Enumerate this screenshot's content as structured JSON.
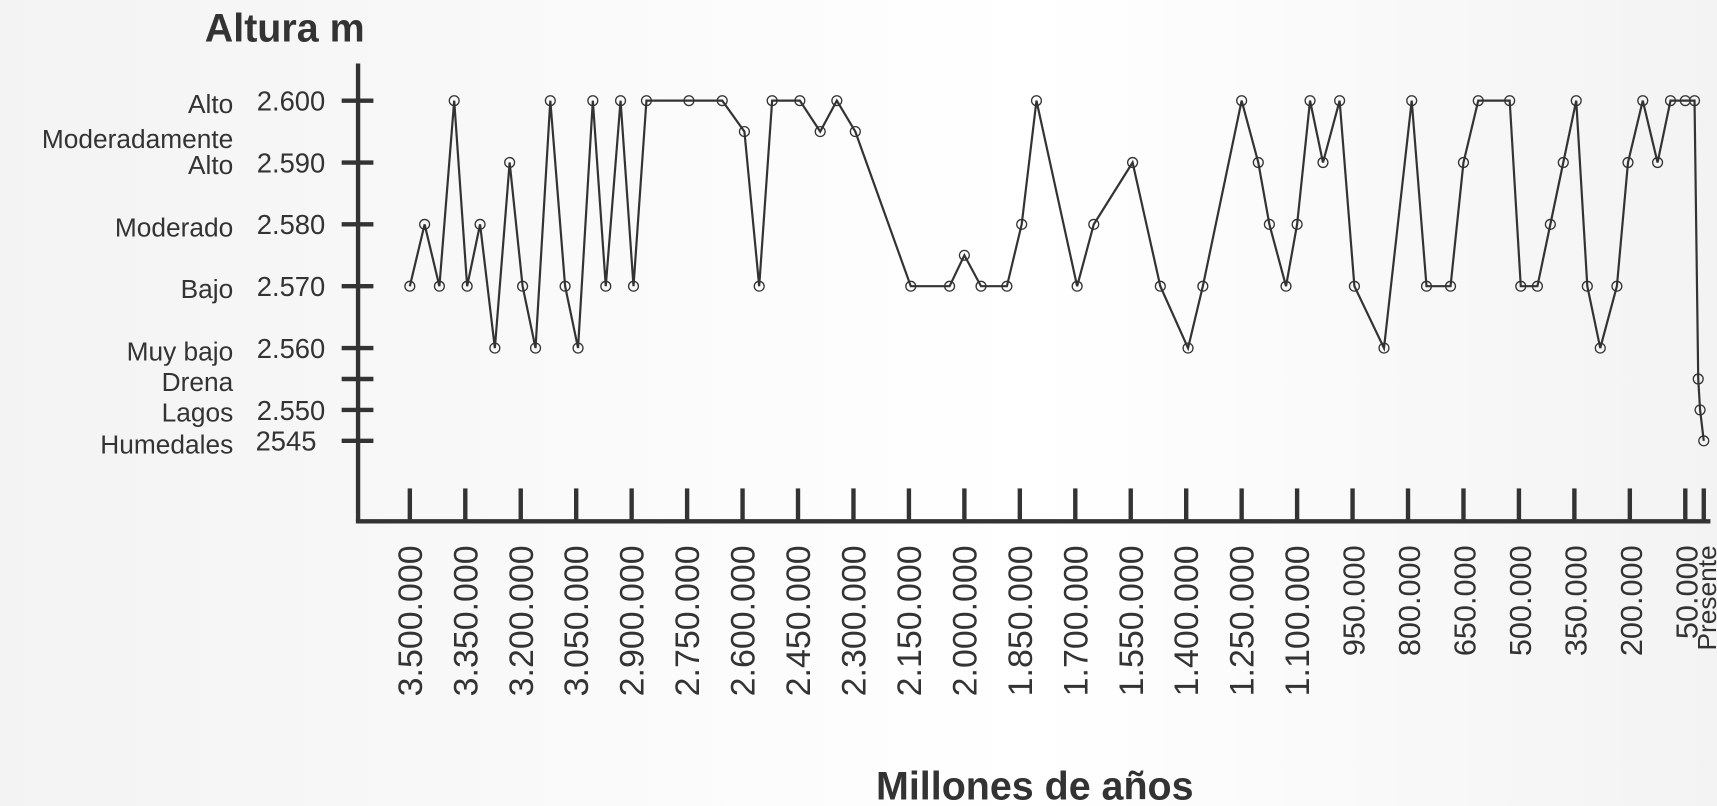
{
  "chart_data": {
    "type": "line",
    "y_title": "Altura m",
    "x_title": "Millones de años",
    "ytick_names": [
      "Alto",
      "Moderadamente Alto",
      "Moderado",
      "Bajo",
      "Muy bajo",
      "Drena",
      "Lagos",
      "Humedales"
    ],
    "yticks": [
      {
        "value": 2600,
        "label": "2.600"
      },
      {
        "value": 2590,
        "label": "2.590"
      },
      {
        "value": 2580,
        "label": "2.580"
      },
      {
        "value": 2570,
        "label": "2.570"
      },
      {
        "value": 2560,
        "label": "2.560"
      },
      2555,
      {
        "value": 2550,
        "label": "2.550"
      },
      2545
    ],
    "ylim": [
      2532,
      2606
    ],
    "xlim": [
      3640000,
      -18000
    ],
    "xticks": [
      {
        "value": 3500000,
        "label": "3.500.000"
      },
      {
        "value": 3350000,
        "label": "3.350.000"
      },
      {
        "value": 3200000,
        "label": "3.200.000"
      },
      {
        "value": 3050000,
        "label": "3.050.000"
      },
      {
        "value": 2900000,
        "label": "2.900.000"
      },
      {
        "value": 2750000,
        "label": "2.750.000"
      },
      {
        "value": 2600000,
        "label": "2.600.000"
      },
      {
        "value": 2450000,
        "label": "2.450.000"
      },
      {
        "value": 2300000,
        "label": "2.300.000"
      },
      {
        "value": 2150000,
        "label": "2.150.000"
      },
      {
        "value": 2000000,
        "label": "2.000.000"
      },
      {
        "value": 1850000,
        "label": "1.850.000"
      },
      {
        "value": 1700000,
        "label": "1.700.000"
      },
      {
        "value": 1550000,
        "label": "1.550.000"
      },
      {
        "value": 1400000,
        "label": "1.400.000"
      },
      {
        "value": 1250000,
        "label": "1.250.000"
      },
      {
        "value": 1100000,
        "label": "1.100.000"
      },
      {
        "value": 950000,
        "label": "950.000"
      },
      {
        "value": 800000,
        "label": "800.000"
      },
      {
        "value": 650000,
        "label": "650.000"
      },
      {
        "value": 500000,
        "label": "500.000"
      },
      {
        "value": 350000,
        "label": "350.000"
      },
      {
        "value": 200000,
        "label": "200.000"
      },
      {
        "value": 50000,
        "label": "50.000"
      },
      {
        "value": 0,
        "label": "Presente"
      }
    ],
    "color": "#333333",
    "x": [
      3500000,
      3460000,
      3420000,
      3380000,
      3345000,
      3310000,
      3270000,
      3230000,
      3195000,
      3160000,
      3120000,
      3080000,
      3045000,
      3005000,
      2970000,
      2930000,
      2895000,
      2860000,
      2745000,
      2655000,
      2595000,
      2555000,
      2520000,
      2445000,
      2390000,
      2345000,
      2295000,
      2145000,
      2040000,
      2000000,
      1955000,
      1885000,
      1845000,
      1805000,
      1695000,
      1650000,
      1545000,
      1470000,
      1395000,
      1355000,
      1250000,
      1205000,
      1175000,
      1130000,
      1100000,
      1065000,
      1030000,
      985000,
      945000,
      865000,
      790000,
      750000,
      685000,
      650000,
      610000,
      525000,
      495000,
      450000,
      415000,
      380000,
      345000,
      315000,
      280000,
      235000,
      205000,
      165000,
      125000,
      90000,
      50000,
      25000,
      15000,
      10000,
      0
    ],
    "values": [
      2570,
      2580,
      2570,
      2600,
      2570,
      2580,
      2560,
      2590,
      2570,
      2560,
      2600,
      2570,
      2560,
      2600,
      2570,
      2600,
      2570,
      2600,
      2600,
      2600,
      2595,
      2570,
      2600,
      2600,
      2595,
      2600,
      2595,
      2570,
      2570,
      2575,
      2570,
      2570,
      2580,
      2600,
      2570,
      2580,
      2590,
      2570,
      2560,
      2570,
      2600,
      2590,
      2580,
      2570,
      2580,
      2600,
      2590,
      2600,
      2570,
      2560,
      2600,
      2570,
      2570,
      2590,
      2600,
      2600,
      2570,
      2570,
      2580,
      2590,
      2600,
      2570,
      2560,
      2570,
      2590,
      2600,
      2590,
      2600,
      2600,
      2600,
      2555,
      2550,
      2545
    ]
  }
}
